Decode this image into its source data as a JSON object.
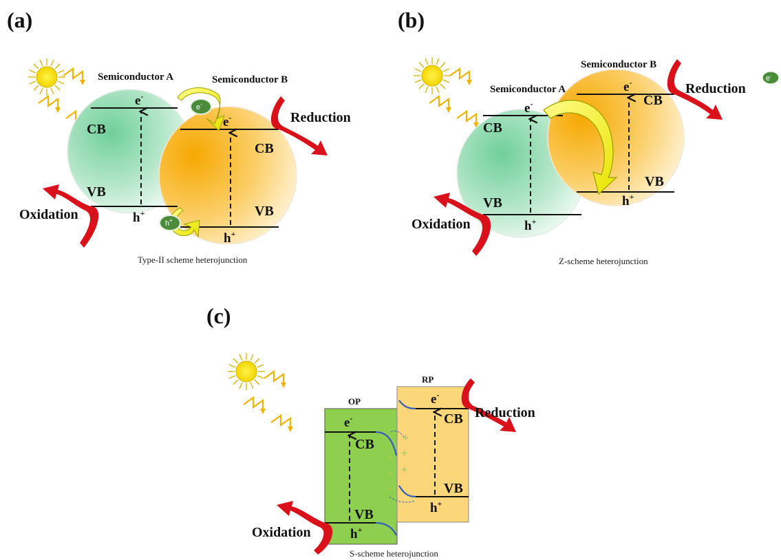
{
  "colors": {
    "semiA": "#8fd9b0",
    "semiB": "#f8b21c",
    "op_box": "#8fcf50",
    "rp_box": "#fbd77a",
    "reaction_arrow": "#d8111a",
    "transfer_arrow": "#eeee20",
    "chip": "#4a8c3a",
    "lightning": "#f0b400",
    "sun": "#ffe600",
    "bending": "#3a63c0",
    "plus": "#8bd06a",
    "minus": "#f0c020"
  },
  "icons": [
    "sun-icon",
    "lightning-icon",
    "curved-arrow-icon",
    "electron-chip-icon",
    "hole-chip-icon"
  ],
  "panel_a": {
    "label": "(a)",
    "semiconductor_a": "Semiconductor A",
    "semiconductor_b": "Semiconductor B",
    "e_a": "e",
    "e_b": "e",
    "h_a": "h",
    "h_b": "h",
    "cb_a": "CB",
    "vb_a": "VB",
    "cb_b": "CB",
    "vb_b": "VB",
    "chip_e": "e",
    "chip_h": "h",
    "oxidation": "Oxidation",
    "reduction": "Reduction",
    "caption": "Type-II scheme heterojunction"
  },
  "panel_b": {
    "label": "(b)",
    "semiconductor_a": "Semiconductor A",
    "semiconductor_b": "Semiconductor B",
    "e_a": "e",
    "e_b": "e",
    "h_a": "h",
    "h_b": "h",
    "cb_a": "CB",
    "vb_a": "VB",
    "cb_b": "CB",
    "vb_b": "VB",
    "chip_e": "e",
    "oxidation": "Oxidation",
    "reduction": "Reduction",
    "caption": "Z-scheme heterojunction"
  },
  "panel_c": {
    "label": "(c)",
    "op": "OP",
    "rp": "RP",
    "e_op": "e",
    "e_rp": "e",
    "h_op": "h",
    "h_rp": "h",
    "cb_op": "CB",
    "vb_op": "VB",
    "cb_rp": "CB",
    "vb_rp": "VB",
    "plus_sign": "+",
    "minus_sign": "-",
    "oxidation": "Oxidation",
    "reduction": "Reduction",
    "caption": "S-scheme heterojunction"
  },
  "superscripts": {
    "minus": "-",
    "plus": "+"
  }
}
